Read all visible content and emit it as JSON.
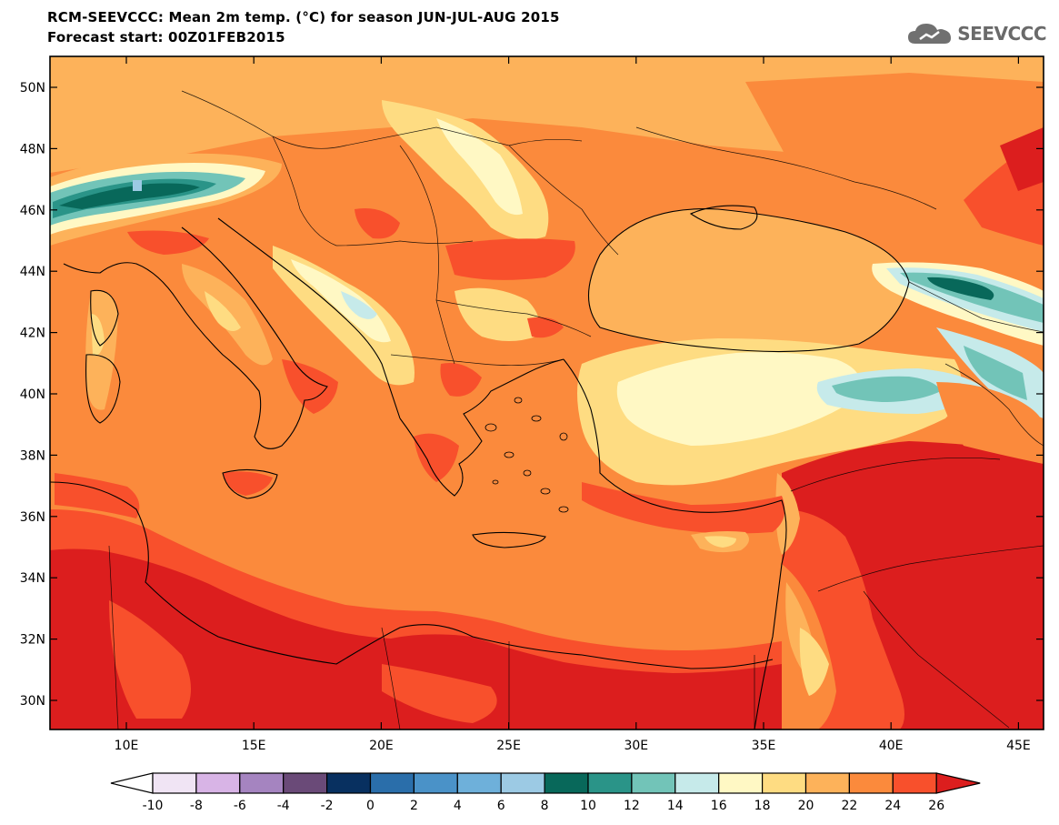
{
  "header": {
    "title_line_1": "RCM-SEEVCCC: Mean 2m temp. (°C) for season JUN-JUL-AUG 2015",
    "title_line_2": "Forecast start: 00Z01FEB2015"
  },
  "logo": {
    "text": "SEEVCCC",
    "icon": "cloud-icon"
  },
  "map": {
    "latitude_labels": [
      "50N",
      "48N",
      "46N",
      "44N",
      "42N",
      "40N",
      "38N",
      "36N",
      "34N",
      "32N",
      "30N"
    ],
    "longitude_labels": [
      "10E",
      "15E",
      "20E",
      "25E",
      "30E",
      "35E",
      "40E",
      "45E"
    ]
  },
  "colorbar": {
    "labels": [
      "-10",
      "-8",
      "-6",
      "-4",
      "-2",
      "0",
      "2",
      "4",
      "6",
      "8",
      "10",
      "12",
      "14",
      "16",
      "18",
      "20",
      "22",
      "24",
      "26"
    ],
    "colors": [
      "#f0e4f4",
      "#d8b4e6",
      "#a584c0",
      "#6a4a78",
      "#083060",
      "#2a6eaa",
      "#4a92c8",
      "#6eb0da",
      "#9ccae4",
      "#08685a",
      "#2a9488",
      "#72c4b8",
      "#c6eaea",
      "#fff8c4",
      "#fedc82",
      "#fdb25a",
      "#fb8a3c",
      "#f8502c"
    ],
    "under_color": "#ffffff",
    "over_color": "#dc1e1e"
  }
}
